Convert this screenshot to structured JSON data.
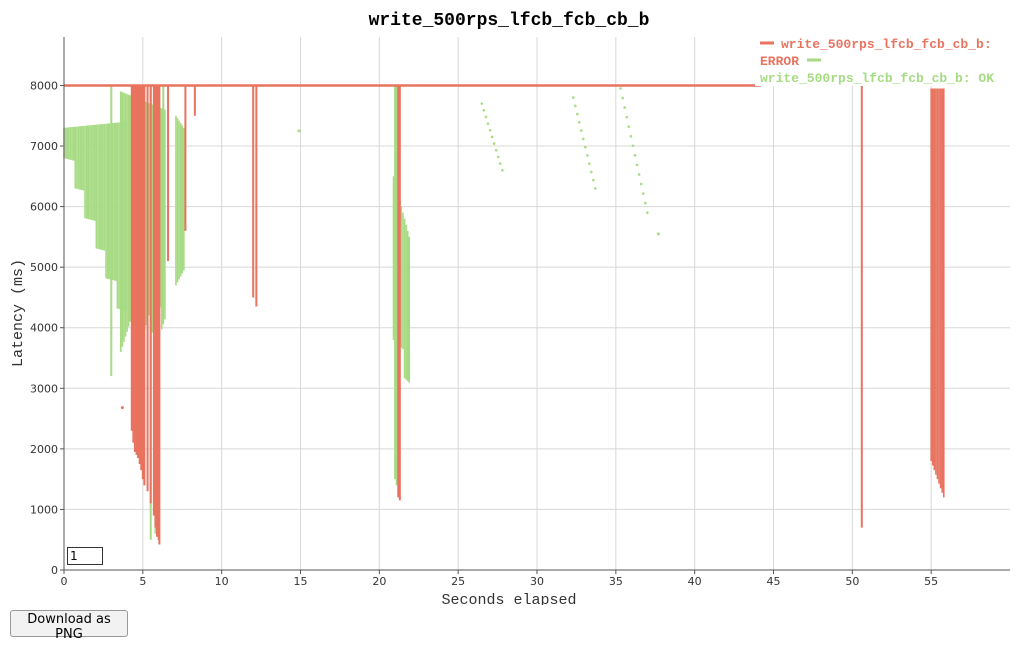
{
  "chart_data": {
    "type": "scatter",
    "title": "write_500rps_lfcb_fcb_cb_b",
    "xlabel": "Seconds elapsed",
    "ylabel": "Latency (ms)",
    "xlim": [
      0,
      60
    ],
    "ylim": [
      0,
      8800
    ],
    "x_ticks": [
      0,
      5,
      10,
      15,
      20,
      25,
      30,
      35,
      40,
      45,
      50,
      55
    ],
    "y_ticks": [
      0,
      1000,
      2000,
      3000,
      4000,
      5000,
      6000,
      7000,
      8000
    ],
    "grid": true,
    "legend_position": "top-right",
    "series": [
      {
        "name": "write_500rps_lfcb_fcb_cb_b: ERROR",
        "color": "#e8735f",
        "baseline": {
          "x": [
            0,
            44.2
          ],
          "y": 8000
        },
        "spikes": [
          {
            "x": 4.3,
            "low": 2300
          },
          {
            "x": 4.4,
            "low": 2100
          },
          {
            "x": 4.5,
            "low": 1950
          },
          {
            "x": 4.6,
            "low": 1900
          },
          {
            "x": 4.7,
            "low": 1850
          },
          {
            "x": 4.8,
            "low": 1750
          },
          {
            "x": 4.9,
            "low": 1650
          },
          {
            "x": 5.0,
            "low": 1500
          },
          {
            "x": 5.1,
            "low": 1400
          },
          {
            "x": 5.3,
            "low": 1300
          },
          {
            "x": 5.5,
            "low": 1100
          },
          {
            "x": 5.7,
            "low": 900
          },
          {
            "x": 5.8,
            "low": 700
          },
          {
            "x": 5.9,
            "low": 550
          },
          {
            "x": 6.0,
            "low": 500
          },
          {
            "x": 6.05,
            "low": 420
          },
          {
            "x": 6.6,
            "low": 5100
          },
          {
            "x": 7.7,
            "low": 5600
          },
          {
            "x": 8.3,
            "low": 7500
          },
          {
            "x": 12.0,
            "low": 4500
          },
          {
            "x": 12.2,
            "low": 4350
          },
          {
            "x": 21.2,
            "low": 1200
          },
          {
            "x": 21.3,
            "low": 1150
          },
          {
            "x": 50.6,
            "low": 700
          }
        ],
        "bands": [
          {
            "x_start": 55.0,
            "x_end": 55.8,
            "low_start": 2000,
            "low_end": 1400,
            "high": 7950
          }
        ],
        "points": [
          {
            "x": 3.7,
            "y": 2680
          }
        ]
      },
      {
        "name": "write_500rps_lfcb_fcb_cb_b: OK",
        "color": "#a6db83",
        "bands": [
          {
            "x_start": 0.0,
            "x_end": 3.9,
            "low_start": 7000,
            "low_end": 4100,
            "high_start": 7300,
            "high_end": 7400
          },
          {
            "x_start": 3.6,
            "x_end": 6.4,
            "low_start": 3800,
            "low_end": 4200,
            "high_start": 7900,
            "high_end": 7600
          },
          {
            "x_start": 7.1,
            "x_end": 7.6,
            "low_start": 4900,
            "low_end": 4800,
            "high_start": 7500,
            "high_end": 7300
          },
          {
            "x_start": 20.9,
            "x_end": 21.9,
            "low_start": 4000,
            "low_end": 3050,
            "high_start": 6500,
            "high_end": 5500
          }
        ],
        "spikes": [
          {
            "x": 3.0,
            "low": 3200
          },
          {
            "x": 5.5,
            "low": 500
          },
          {
            "x": 5.8,
            "low": 600
          },
          {
            "x": 6.3,
            "low": 4300
          },
          {
            "x": 21.0,
            "low": 1500
          },
          {
            "x": 21.1,
            "low": 1400
          }
        ],
        "point_runs": [
          {
            "x_start": 26.5,
            "x_end": 27.8,
            "y_start": 7700,
            "y_end": 6600
          },
          {
            "x_start": 32.3,
            "x_end": 33.7,
            "y_start": 7800,
            "y_end": 6300
          },
          {
            "x_start": 35.3,
            "x_end": 37.0,
            "y_start": 7950,
            "y_end": 5900
          }
        ],
        "points": [
          {
            "x": 14.9,
            "y": 7250
          },
          {
            "x": 37.7,
            "y": 5550
          }
        ]
      }
    ]
  },
  "controls": {
    "smoothing_value": "1",
    "download_label": "Download as PNG"
  }
}
